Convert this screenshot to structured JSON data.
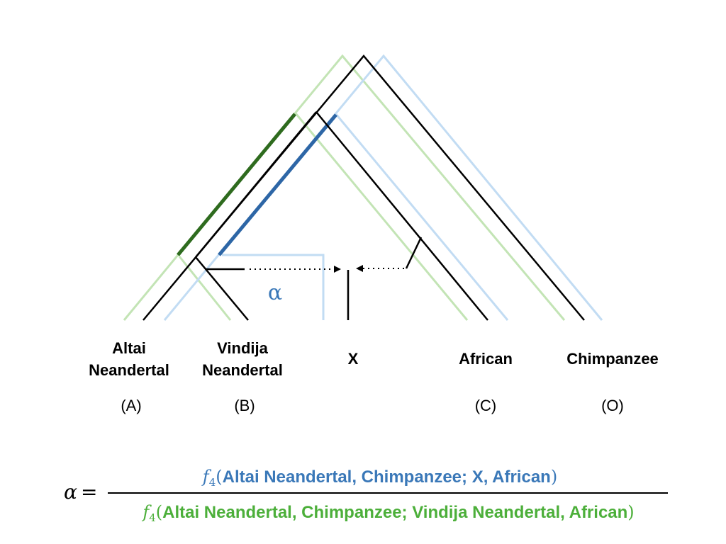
{
  "colors": {
    "tree": "#000000",
    "green_light": "#c3e4b5",
    "green_dark": "#2e6b1e",
    "blue_light": "#c2dcf3",
    "blue_dark": "#2d66a6",
    "numerator_text": "#3a78b8",
    "denominator_text": "#4caf3a",
    "alpha_mark": "#3a78b8"
  },
  "leaves": {
    "altai": {
      "line1": "Altai",
      "line2": "Neandertal",
      "tag": "(A)"
    },
    "vindija": {
      "line1": "Vindija",
      "line2": "Neandertal",
      "tag": "(B)"
    },
    "x": {
      "name": "X"
    },
    "african": {
      "name": "African",
      "tag": "(C)"
    },
    "chimp": {
      "name": "Chimpanzee",
      "tag": "(O)"
    }
  },
  "alpha_mark": "α",
  "equation": {
    "lhs": "α",
    "equals": "=",
    "f": "f",
    "subscript": "4",
    "open_paren": "(",
    "close_paren": ")",
    "numerator_args": "Altai Neandertal, Chimpanzee; X, African",
    "denominator_args": "Altai Neandertal, Chimpanzee; Vindija Neandertal, African"
  }
}
